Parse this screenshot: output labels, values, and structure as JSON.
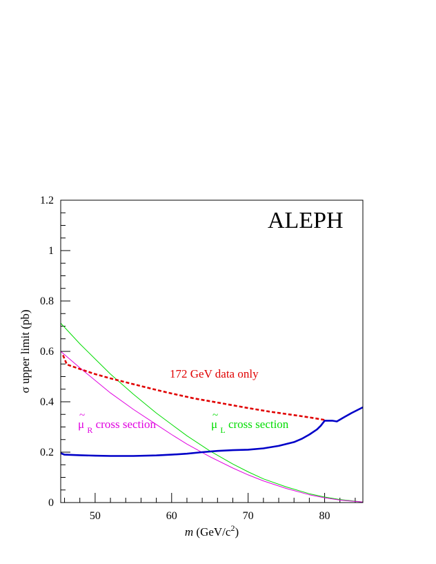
{
  "chart_data": {
    "type": "line",
    "title": "",
    "watermark": "ALEPH",
    "xlabel": {
      "italic": "m",
      "pre": " (GeV/c",
      "sup": "2",
      "post": ")"
    },
    "ylabel": "σ upper limit (pb)",
    "xlim": [
      45.5,
      85
    ],
    "ylim": [
      0,
      1.2
    ],
    "xticks": [
      50,
      60,
      70,
      80
    ],
    "xtick_labels": [
      "50",
      "60",
      "70",
      "80"
    ],
    "yticks": [
      0,
      0.2,
      0.4,
      0.6,
      0.8,
      1,
      1.2
    ],
    "ytick_labels": [
      "0",
      "0.2",
      "0.4",
      "0.6",
      "0.8",
      "1",
      "1.2"
    ],
    "series": [
      {
        "key": "combined",
        "style": "solid-thick",
        "color": "#0000c8",
        "x": [
          45.5,
          46,
          48,
          50,
          52,
          55,
          58,
          60,
          62,
          64,
          66,
          68,
          70,
          72,
          74,
          76,
          77,
          78,
          79,
          79.5,
          80,
          81,
          81.6,
          82.5,
          83.5,
          85
        ],
        "y": [
          0.196,
          0.19,
          0.188,
          0.186,
          0.185,
          0.185,
          0.187,
          0.19,
          0.194,
          0.2,
          0.205,
          0.208,
          0.21,
          0.215,
          0.225,
          0.24,
          0.253,
          0.27,
          0.29,
          0.305,
          0.325,
          0.325,
          0.322,
          0.338,
          0.355,
          0.378
        ]
      },
      {
        "key": "data172",
        "style": "dashed",
        "color": "#e00000",
        "x": [
          45.8,
          46.3,
          48,
          50,
          52,
          55,
          58,
          60,
          63,
          66,
          70,
          73,
          76,
          78,
          80
        ],
        "y": [
          0.585,
          0.548,
          0.53,
          0.51,
          0.493,
          0.47,
          0.447,
          0.433,
          0.413,
          0.397,
          0.375,
          0.36,
          0.347,
          0.338,
          0.328
        ]
      },
      {
        "key": "muL",
        "style": "solid-thin",
        "color": "#00dc00",
        "x": [
          45.5,
          48,
          50,
          52,
          55,
          58,
          60,
          62,
          65,
          68,
          70,
          72,
          75,
          78,
          80,
          82,
          85
        ],
        "y": [
          0.712,
          0.63,
          0.57,
          0.51,
          0.43,
          0.355,
          0.31,
          0.265,
          0.205,
          0.153,
          0.122,
          0.094,
          0.062,
          0.035,
          0.022,
          0.012,
          0.002
        ]
      },
      {
        "key": "muR",
        "style": "solid-thin",
        "color": "#e000e0",
        "x": [
          45.5,
          48,
          50,
          52,
          55,
          58,
          60,
          62,
          65,
          68,
          70,
          72,
          75,
          78,
          80,
          82,
          85
        ],
        "y": [
          0.6,
          0.535,
          0.485,
          0.435,
          0.37,
          0.31,
          0.27,
          0.232,
          0.182,
          0.137,
          0.11,
          0.086,
          0.056,
          0.031,
          0.019,
          0.01,
          0.002
        ]
      }
    ],
    "annotations": [
      {
        "key": "data172_label",
        "text": "172 GeV data only",
        "color": "#e00000"
      },
      {
        "key": "muR_label",
        "tilde": "~",
        "symbol": "μ",
        "sub": "R",
        "rest": " cross section",
        "color": "#e000e0"
      },
      {
        "key": "muL_label",
        "tilde": "~",
        "symbol": "μ",
        "sub": "L",
        "rest": " cross section",
        "color": "#00dc00"
      }
    ]
  }
}
